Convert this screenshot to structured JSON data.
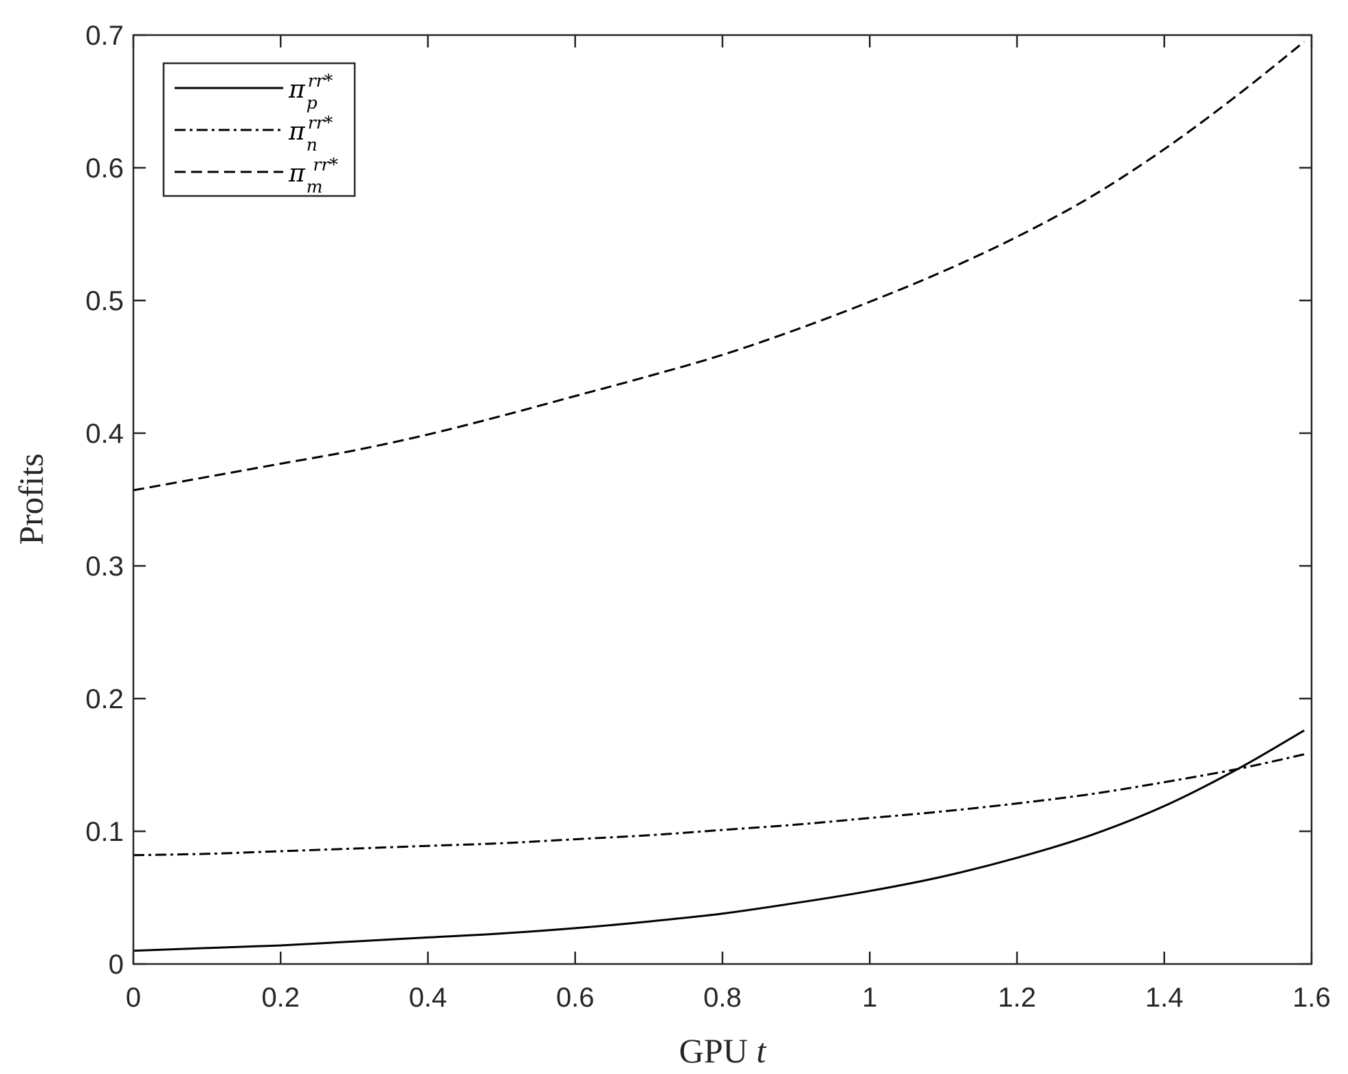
{
  "chart_data": {
    "type": "line",
    "title": "",
    "xlabel": "GPU",
    "xlabel_var": "t",
    "ylabel": "Profits",
    "xlim": [
      0,
      1.6
    ],
    "ylim": [
      0,
      0.7
    ],
    "xticks": [
      "0",
      "0.2",
      "0.4",
      "0.6",
      "0.8",
      "1",
      "1.2",
      "1.4",
      "1.6"
    ],
    "yticks": [
      "0",
      "0.1",
      "0.2",
      "0.3",
      "0.4",
      "0.5",
      "0.6",
      "0.7"
    ],
    "x": [
      0,
      0.1,
      0.2,
      0.3,
      0.4,
      0.5,
      0.6,
      0.7,
      0.8,
      0.9,
      1.0,
      1.1,
      1.2,
      1.3,
      1.4,
      1.5,
      1.59
    ],
    "series": [
      {
        "name": "π_p^{rr*}",
        "sym": "π",
        "sub": "p",
        "sup": "rr*",
        "style": "solid",
        "values": [
          0.01,
          0.012,
          0.014,
          0.017,
          0.02,
          0.023,
          0.027,
          0.032,
          0.038,
          0.046,
          0.055,
          0.066,
          0.08,
          0.097,
          0.119,
          0.147,
          0.176
        ]
      },
      {
        "name": "π_n^{rr*}",
        "sym": "π",
        "sub": "n",
        "sup": "rr*",
        "style": "dashdot",
        "values": [
          0.082,
          0.083,
          0.085,
          0.087,
          0.089,
          0.091,
          0.094,
          0.097,
          0.101,
          0.105,
          0.11,
          0.115,
          0.121,
          0.128,
          0.137,
          0.147,
          0.158
        ]
      },
      {
        "name": "π_m^{rr*}",
        "sym": "π",
        "sub": "m",
        "sup": "rr*",
        "style": "dashed",
        "values": [
          0.357,
          0.367,
          0.377,
          0.387,
          0.399,
          0.413,
          0.428,
          0.443,
          0.459,
          0.478,
          0.499,
          0.522,
          0.548,
          0.578,
          0.614,
          0.655,
          0.695
        ]
      }
    ],
    "grid": false,
    "legend": "top-left",
    "colors": {
      "line": "#000000",
      "axis": "#262626"
    }
  }
}
